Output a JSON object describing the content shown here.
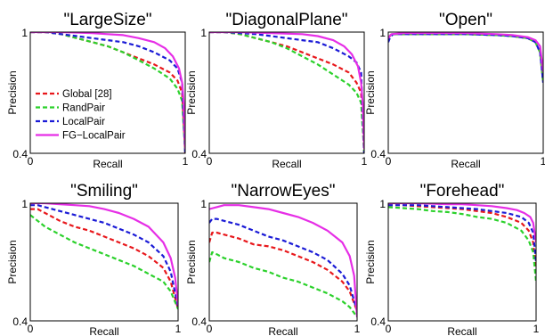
{
  "chart_data": [
    {
      "type": "line",
      "title": "\"LargeSize\"",
      "xlabel": "Recall",
      "ylabel": "Precision",
      "xlim": [
        0,
        1
      ],
      "ylim": [
        0.4,
        1
      ],
      "x_ticks": [
        "0",
        "1"
      ],
      "y_ticks": [
        "0.4",
        "1"
      ],
      "legend": "left",
      "series": [
        {
          "name": "Global [28]",
          "color": "#e8181c",
          "dash": "dashed",
          "x": [
            0.0,
            0.1,
            0.2,
            0.3,
            0.4,
            0.5,
            0.6,
            0.7,
            0.8,
            0.9,
            0.95,
            0.98,
            1.0
          ],
          "y": [
            1.0,
            1.0,
            0.99,
            0.97,
            0.95,
            0.93,
            0.9,
            0.87,
            0.84,
            0.8,
            0.76,
            0.7,
            0.4
          ]
        },
        {
          "name": "RandPair",
          "color": "#2bd12b",
          "dash": "dashed",
          "x": [
            0.0,
            0.1,
            0.2,
            0.3,
            0.4,
            0.5,
            0.6,
            0.7,
            0.8,
            0.9,
            0.95,
            0.98,
            1.0
          ],
          "y": [
            1.0,
            1.0,
            0.99,
            0.97,
            0.95,
            0.93,
            0.9,
            0.86,
            0.82,
            0.77,
            0.72,
            0.66,
            0.4
          ]
        },
        {
          "name": "LocalPair",
          "color": "#1b1bd6",
          "dash": "dashed",
          "x": [
            0.0,
            0.1,
            0.2,
            0.3,
            0.4,
            0.5,
            0.6,
            0.7,
            0.8,
            0.9,
            0.95,
            0.98,
            1.0
          ],
          "y": [
            1.0,
            1.0,
            0.99,
            0.98,
            0.97,
            0.96,
            0.95,
            0.93,
            0.9,
            0.86,
            0.82,
            0.75,
            0.4
          ]
        },
        {
          "name": "FG−LocalPair",
          "color": "#e62ee6",
          "dash": "solid",
          "x": [
            0.0,
            0.2,
            0.4,
            0.5,
            0.6,
            0.7,
            0.8,
            0.87,
            0.92,
            0.96,
            0.98,
            0.99,
            1.0
          ],
          "y": [
            1.0,
            1.0,
            0.995,
            0.99,
            0.985,
            0.97,
            0.95,
            0.92,
            0.88,
            0.82,
            0.75,
            0.65,
            0.42
          ]
        }
      ]
    },
    {
      "type": "line",
      "title": "\"DiagonalPlane\"",
      "xlabel": "Recall",
      "ylabel": "Precision",
      "xlim": [
        0,
        1
      ],
      "ylim": [
        0.4,
        1
      ],
      "x_ticks": [
        "0",
        "1"
      ],
      "y_ticks": [
        "0.4",
        "1"
      ],
      "series": [
        {
          "name": "Global [28]",
          "color": "#e8181c",
          "dash": "dashed",
          "x": [
            0.0,
            0.1,
            0.2,
            0.3,
            0.4,
            0.5,
            0.6,
            0.7,
            0.8,
            0.9,
            0.95,
            0.98,
            1.0
          ],
          "y": [
            1.0,
            1.0,
            0.99,
            0.97,
            0.95,
            0.93,
            0.9,
            0.87,
            0.84,
            0.8,
            0.75,
            0.7,
            0.4
          ]
        },
        {
          "name": "RandPair",
          "color": "#2bd12b",
          "dash": "dashed",
          "x": [
            0.0,
            0.1,
            0.2,
            0.3,
            0.4,
            0.5,
            0.6,
            0.7,
            0.8,
            0.9,
            0.95,
            0.98,
            1.0
          ],
          "y": [
            1.0,
            1.0,
            0.99,
            0.97,
            0.95,
            0.92,
            0.88,
            0.84,
            0.79,
            0.74,
            0.7,
            0.65,
            0.4
          ]
        },
        {
          "name": "LocalPair",
          "color": "#1b1bd6",
          "dash": "dashed",
          "x": [
            0.0,
            0.1,
            0.2,
            0.3,
            0.4,
            0.5,
            0.6,
            0.7,
            0.8,
            0.9,
            0.95,
            0.98,
            1.0
          ],
          "y": [
            1.0,
            1.0,
            0.995,
            0.99,
            0.98,
            0.97,
            0.96,
            0.95,
            0.92,
            0.88,
            0.85,
            0.8,
            0.4
          ]
        },
        {
          "name": "FG−LocalPair",
          "color": "#e62ee6",
          "dash": "solid",
          "x": [
            0.0,
            0.2,
            0.4,
            0.6,
            0.7,
            0.8,
            0.87,
            0.92,
            0.96,
            0.98,
            0.99,
            1.0
          ],
          "y": [
            1.0,
            1.0,
            0.995,
            0.99,
            0.98,
            0.96,
            0.93,
            0.89,
            0.83,
            0.75,
            0.65,
            0.42
          ]
        }
      ]
    },
    {
      "type": "line",
      "title": "\"Open\"",
      "xlabel": "Recall",
      "ylabel": "Precision",
      "xlim": [
        0,
        1
      ],
      "ylim": [
        0.4,
        1
      ],
      "x_ticks": [
        "0",
        "1"
      ],
      "y_ticks": [
        "0.4",
        "1"
      ],
      "series": [
        {
          "name": "Global [28]",
          "color": "#e8181c",
          "dash": "dashed",
          "x": [
            0.0,
            0.02,
            0.1,
            0.3,
            0.5,
            0.7,
            0.8,
            0.9,
            0.95,
            0.98,
            1.0
          ],
          "y": [
            0.97,
            0.99,
            0.99,
            0.99,
            0.99,
            0.985,
            0.98,
            0.97,
            0.95,
            0.9,
            0.75
          ]
        },
        {
          "name": "RandPair",
          "color": "#2bd12b",
          "dash": "dashed",
          "x": [
            0.0,
            0.02,
            0.1,
            0.3,
            0.5,
            0.7,
            0.8,
            0.9,
            0.95,
            0.98,
            1.0
          ],
          "y": [
            0.97,
            0.99,
            0.99,
            0.99,
            0.99,
            0.985,
            0.98,
            0.97,
            0.95,
            0.9,
            0.75
          ]
        },
        {
          "name": "LocalPair",
          "color": "#1b1bd6",
          "dash": "dashed",
          "x": [
            0.0,
            0.01,
            0.03,
            0.1,
            0.3,
            0.5,
            0.7,
            0.8,
            0.9,
            0.95,
            0.98,
            1.0
          ],
          "y": [
            0.95,
            0.97,
            0.99,
            0.99,
            0.99,
            0.99,
            0.985,
            0.98,
            0.97,
            0.95,
            0.9,
            0.75
          ]
        },
        {
          "name": "FG−LocalPair",
          "color": "#e62ee6",
          "dash": "solid",
          "x": [
            0.0,
            0.02,
            0.1,
            0.3,
            0.5,
            0.7,
            0.8,
            0.9,
            0.95,
            0.98,
            1.0
          ],
          "y": [
            0.97,
            0.99,
            0.995,
            0.995,
            0.995,
            0.99,
            0.985,
            0.975,
            0.96,
            0.93,
            0.8
          ]
        }
      ]
    },
    {
      "type": "line",
      "title": "\"Smiling\"",
      "xlabel": "Recall",
      "ylabel": "Precision",
      "xlim": [
        0,
        1
      ],
      "ylim": [
        0.4,
        1
      ],
      "x_ticks": [
        "0",
        "1"
      ],
      "y_ticks": [
        "0.4",
        "1"
      ],
      "series": [
        {
          "name": "Global [28]",
          "color": "#e8181c",
          "dash": "dashed",
          "x": [
            0.0,
            0.05,
            0.1,
            0.2,
            0.3,
            0.4,
            0.5,
            0.6,
            0.7,
            0.8,
            0.9,
            0.95,
            1.0
          ],
          "y": [
            0.97,
            0.97,
            0.95,
            0.91,
            0.88,
            0.86,
            0.83,
            0.8,
            0.77,
            0.73,
            0.67,
            0.6,
            0.46
          ]
        },
        {
          "name": "RandPair",
          "color": "#2bd12b",
          "dash": "dashed",
          "x": [
            0.0,
            0.05,
            0.1,
            0.2,
            0.3,
            0.4,
            0.5,
            0.6,
            0.7,
            0.8,
            0.9,
            0.95,
            1.0
          ],
          "y": [
            0.94,
            0.91,
            0.88,
            0.84,
            0.8,
            0.77,
            0.74,
            0.71,
            0.68,
            0.64,
            0.6,
            0.55,
            0.46
          ]
        },
        {
          "name": "LocalPair",
          "color": "#1b1bd6",
          "dash": "dashed",
          "x": [
            0.0,
            0.05,
            0.1,
            0.2,
            0.3,
            0.4,
            0.5,
            0.6,
            0.7,
            0.8,
            0.9,
            0.95,
            1.0
          ],
          "y": [
            0.99,
            0.99,
            0.98,
            0.96,
            0.94,
            0.92,
            0.9,
            0.87,
            0.84,
            0.8,
            0.73,
            0.65,
            0.47
          ]
        },
        {
          "name": "FG−LocalPair",
          "color": "#e62ee6",
          "dash": "solid",
          "x": [
            0.0,
            0.1,
            0.2,
            0.3,
            0.4,
            0.5,
            0.6,
            0.7,
            0.8,
            0.9,
            0.95,
            0.98,
            1.0
          ],
          "y": [
            1.0,
            1.0,
            0.995,
            0.99,
            0.985,
            0.97,
            0.95,
            0.92,
            0.88,
            0.8,
            0.72,
            0.62,
            0.48
          ]
        }
      ]
    },
    {
      "type": "line",
      "title": "\"NarrowEyes\"",
      "xlabel": "Recall",
      "ylabel": "Precision",
      "xlim": [
        0,
        1
      ],
      "ylim": [
        0.4,
        1
      ],
      "x_ticks": [
        "0",
        "1"
      ],
      "y_ticks": [
        "0.4",
        "1"
      ],
      "series": [
        {
          "name": "Global [28]",
          "color": "#e8181c",
          "dash": "dashed",
          "x": [
            0.0,
            0.02,
            0.05,
            0.1,
            0.2,
            0.3,
            0.4,
            0.5,
            0.6,
            0.7,
            0.8,
            0.9,
            0.95,
            1.0
          ],
          "y": [
            0.8,
            0.85,
            0.85,
            0.84,
            0.82,
            0.79,
            0.78,
            0.76,
            0.73,
            0.7,
            0.66,
            0.6,
            0.55,
            0.45
          ]
        },
        {
          "name": "RandPair",
          "color": "#2bd12b",
          "dash": "dashed",
          "x": [
            0.0,
            0.02,
            0.05,
            0.1,
            0.2,
            0.3,
            0.4,
            0.5,
            0.6,
            0.7,
            0.8,
            0.9,
            0.95,
            1.0
          ],
          "y": [
            0.7,
            0.75,
            0.74,
            0.72,
            0.7,
            0.67,
            0.65,
            0.62,
            0.6,
            0.57,
            0.54,
            0.5,
            0.47,
            0.42
          ]
        },
        {
          "name": "LocalPair",
          "color": "#1b1bd6",
          "dash": "dashed",
          "x": [
            0.0,
            0.02,
            0.05,
            0.1,
            0.2,
            0.3,
            0.4,
            0.5,
            0.6,
            0.7,
            0.8,
            0.9,
            0.95,
            1.0
          ],
          "y": [
            0.9,
            0.92,
            0.92,
            0.91,
            0.89,
            0.86,
            0.83,
            0.81,
            0.78,
            0.75,
            0.71,
            0.64,
            0.58,
            0.45
          ]
        },
        {
          "name": "FG−LocalPair",
          "color": "#e62ee6",
          "dash": "solid",
          "x": [
            0.0,
            0.05,
            0.1,
            0.2,
            0.3,
            0.4,
            0.5,
            0.6,
            0.7,
            0.8,
            0.9,
            0.95,
            0.98,
            1.0
          ],
          "y": [
            0.97,
            0.98,
            0.99,
            0.99,
            0.98,
            0.97,
            0.95,
            0.93,
            0.9,
            0.86,
            0.8,
            0.73,
            0.63,
            0.42
          ]
        }
      ]
    },
    {
      "type": "line",
      "title": "\"Forehead\"",
      "xlabel": "Recall",
      "ylabel": "Precision",
      "xlim": [
        0,
        1
      ],
      "ylim": [
        0.4,
        1
      ],
      "x_ticks": [
        "0",
        "1"
      ],
      "y_ticks": [
        "0.4",
        "1"
      ],
      "series": [
        {
          "name": "Global [28]",
          "color": "#e8181c",
          "dash": "dashed",
          "x": [
            0.0,
            0.1,
            0.2,
            0.3,
            0.4,
            0.5,
            0.6,
            0.7,
            0.8,
            0.9,
            0.95,
            0.98,
            1.0
          ],
          "y": [
            0.99,
            0.99,
            0.985,
            0.98,
            0.975,
            0.97,
            0.96,
            0.95,
            0.93,
            0.9,
            0.86,
            0.8,
            0.66
          ]
        },
        {
          "name": "RandPair",
          "color": "#2bd12b",
          "dash": "dashed",
          "x": [
            0.0,
            0.1,
            0.2,
            0.3,
            0.4,
            0.5,
            0.6,
            0.7,
            0.8,
            0.9,
            0.95,
            0.98,
            1.0
          ],
          "y": [
            0.98,
            0.975,
            0.97,
            0.96,
            0.955,
            0.945,
            0.93,
            0.92,
            0.9,
            0.86,
            0.81,
            0.75,
            0.6
          ]
        },
        {
          "name": "LocalPair",
          "color": "#1b1bd6",
          "dash": "dashed",
          "x": [
            0.0,
            0.1,
            0.2,
            0.3,
            0.4,
            0.5,
            0.6,
            0.7,
            0.8,
            0.9,
            0.95,
            0.98,
            1.0
          ],
          "y": [
            0.99,
            0.99,
            0.99,
            0.985,
            0.98,
            0.975,
            0.97,
            0.96,
            0.95,
            0.93,
            0.9,
            0.85,
            0.7
          ]
        },
        {
          "name": "FG−LocalPair",
          "color": "#e62ee6",
          "dash": "solid",
          "x": [
            0.0,
            0.2,
            0.4,
            0.5,
            0.6,
            0.7,
            0.8,
            0.87,
            0.92,
            0.96,
            0.98,
            1.0
          ],
          "y": [
            1.0,
            1.0,
            0.995,
            0.995,
            0.99,
            0.985,
            0.975,
            0.965,
            0.95,
            0.93,
            0.9,
            0.8
          ]
        }
      ]
    }
  ]
}
